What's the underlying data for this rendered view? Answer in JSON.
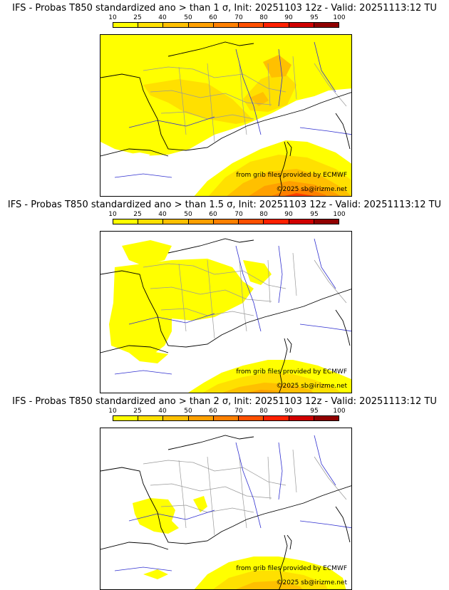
{
  "panels": [
    {
      "title": "IFS - Probas T850  standardized ano > than 1 σ, Init: 20251103 12z - Valid: 20251113:12 TU",
      "sigma": 1
    },
    {
      "title": "IFS - Probas T850  standardized ano > than 1.5 σ, Init: 20251103 12z - Valid: 20251113:12 TU",
      "sigma": 1.5
    },
    {
      "title": "IFS - Probas T850  standardized ano > than 2 σ, Init: 20251103 12z - Valid: 20251113:12 TU",
      "sigma": 2
    }
  ],
  "scale": {
    "labels": [
      "10",
      "25",
      "40",
      "50",
      "60",
      "70",
      "80",
      "90",
      "95",
      "100"
    ],
    "colors": [
      "#ffff00",
      "#ffe000",
      "#ffc000",
      "#ffa000",
      "#ff8000",
      "#ff5000",
      "#ff2000",
      "#d00000",
      "#900000"
    ]
  },
  "credits": {
    "source": "from grib files provided by ECMWF",
    "copyright": "©2025 sb@irizme.net"
  },
  "colors": {
    "coast": "#000000",
    "borders": "#999999",
    "rivers": "#3030d0"
  }
}
